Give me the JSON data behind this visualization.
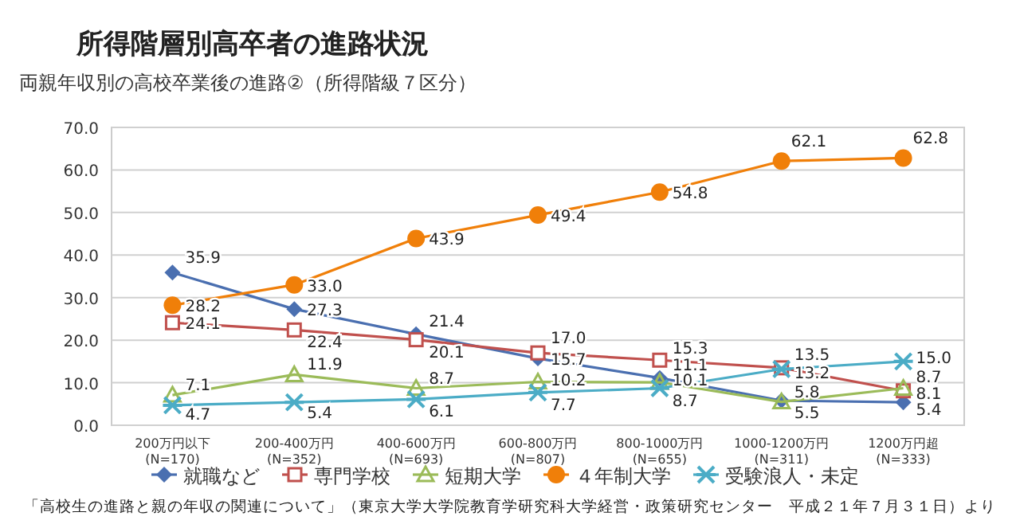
{
  "chart_data": {
    "type": "line",
    "title": "所得階層別高卒者の進路状況",
    "subtitle": "両親年収別の高校卒業後の進路②（所得階級７区分）",
    "categories": [
      "200万円以下\n(N=170)",
      "200-400万円\n(N=352)",
      "400-600万円\n(N=693)",
      "600-800万円\n(N=807)",
      "800-1000万円\n(N=655)",
      "1000-1200万円\n(N=311)",
      "1200万円超\n(N=333)"
    ],
    "series": [
      {
        "name": "就職など",
        "color": "#4a6fb0",
        "marker": "diamond",
        "values": [
          35.9,
          27.3,
          21.4,
          15.7,
          11.1,
          5.8,
          5.4
        ],
        "value_labels": [
          "35.9",
          "27.3",
          "21.4",
          "15.7",
          "11.1",
          "5.8",
          "5.4"
        ]
      },
      {
        "name": "専門学校",
        "color": "#c0504d",
        "marker": "square",
        "values": [
          24.1,
          22.4,
          20.1,
          17.0,
          15.3,
          13.5,
          8.1
        ],
        "value_labels": [
          "24.1",
          "22.4",
          "20.1",
          "17.0",
          "15.3",
          "13.5",
          "8.1"
        ]
      },
      {
        "name": "短期大学",
        "color": "#9bbb59",
        "marker": "triangle",
        "values": [
          7.1,
          11.9,
          8.7,
          10.2,
          10.1,
          5.5,
          8.7
        ],
        "value_labels": [
          "7.1",
          "11.9",
          "8.7",
          "10.2",
          "10.1",
          "5.5",
          "8.7"
        ]
      },
      {
        "name": "４年制大学",
        "color": "#f07f09",
        "marker": "circle",
        "values": [
          28.2,
          33.0,
          43.9,
          49.4,
          54.8,
          62.1,
          62.8
        ],
        "value_labels": [
          "28.2",
          "33.0",
          "43.9",
          "49.4",
          "54.8",
          "62.1",
          "62.8"
        ]
      },
      {
        "name": "受験浪人・未定",
        "color": "#4bacc6",
        "marker": "cross",
        "values": [
          4.7,
          5.4,
          6.1,
          7.7,
          8.7,
          13.2,
          15.0
        ],
        "value_labels": [
          "4.7",
          "5.4",
          "6.1",
          "7.7",
          "8.7",
          "13.2",
          "15.0"
        ]
      }
    ],
    "ylim": [
      0,
      70
    ],
    "yticks": [
      {
        "value": 0,
        "label": "0.0"
      },
      {
        "value": 10,
        "label": "10.0"
      },
      {
        "value": 20,
        "label": "20.0"
      },
      {
        "value": 30,
        "label": "30.0"
      },
      {
        "value": 40,
        "label": "40.0"
      },
      {
        "value": 50,
        "label": "50.0"
      },
      {
        "value": 60,
        "label": "60.0"
      },
      {
        "value": 70,
        "label": "70.0"
      }
    ],
    "grid": "y",
    "legend": "bottom",
    "annotations": [
      "「高校生の進路と親の年収の関連について」（東京大学大学院教育学研究科大学経営・政策研究センター　平成２１年７月３１日）より"
    ]
  }
}
